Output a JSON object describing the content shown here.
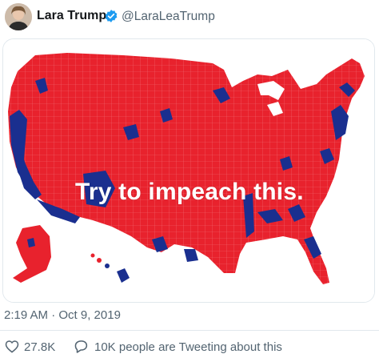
{
  "tweet": {
    "author_name": "Lara Trump",
    "author_handle": "@LaraLeaTrump",
    "verified": true,
    "media_overlay_text": "Try to impeach this.",
    "timestamp": "2:19 AM · Oct 9, 2019"
  },
  "actions": {
    "like_count": "27.8K",
    "conversation_text": "10K people are Tweeting about this"
  },
  "colors": {
    "map_red": "#e8222d",
    "map_blue": "#1a2f8f",
    "verified_blue": "#1d9bf0",
    "secondary_text": "#536471"
  },
  "icons": {
    "verified": "verified-badge-icon",
    "like": "heart-icon",
    "reply": "speech-bubble-icon"
  }
}
